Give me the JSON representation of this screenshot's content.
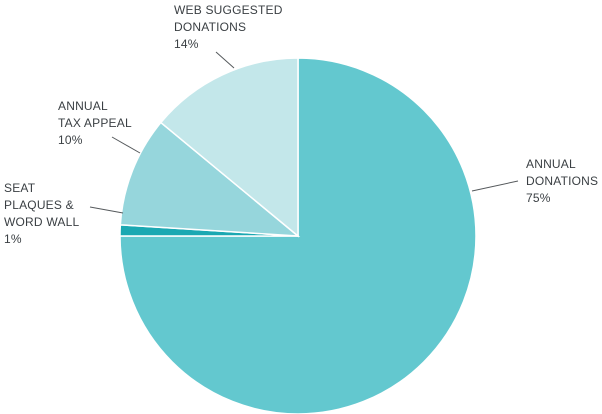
{
  "chart_data": {
    "type": "pie",
    "title": "",
    "start_angle_deg": 90,
    "direction": "clockwise",
    "slices": [
      {
        "label_lines": [
          "ANNUAL",
          "DONATIONS",
          "75%"
        ],
        "value": 75,
        "color": "#63c8cf"
      },
      {
        "label_lines": [
          "SEAT",
          "PLAQUES &",
          "WORD WALL",
          "1%"
        ],
        "value": 1,
        "color": "#1ba8b2"
      },
      {
        "label_lines": [
          "ANNUAL",
          "TAX APPEAL",
          "10%"
        ],
        "value": 10,
        "color": "#96d6dc"
      },
      {
        "label_lines": [
          "WEB SUGGESTED",
          "DONATIONS",
          "14%"
        ],
        "value": 14,
        "color": "#c3e7ea"
      }
    ]
  }
}
